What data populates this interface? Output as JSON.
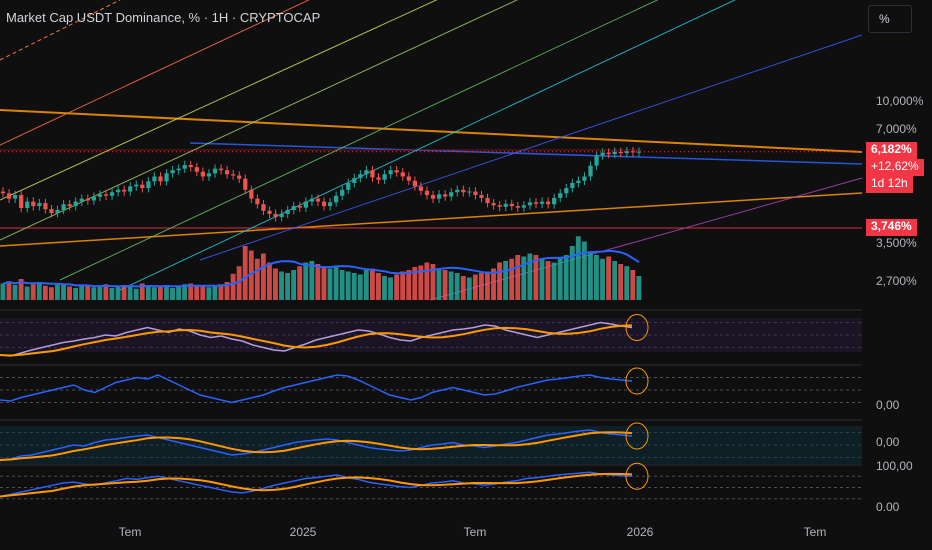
{
  "header": {
    "title": "Market Cap USDT Dominance, % · 1H · CRYPTOCAP",
    "unit_button": "%"
  },
  "badges": {
    "price": "6,182%",
    "change": "+12,62%",
    "countdown": "1d 12h",
    "level": "3,746%"
  },
  "colors": {
    "background": "#0f0f0f",
    "up": "#26a69a",
    "down": "#ef5350",
    "accent_orange": "#ff9800",
    "accent_blue": "#2962ff",
    "badge_red": "#f23645"
  },
  "chart_data": {
    "type": "candlestick",
    "title": "Market Cap USDT Dominance, % · 1H · CRYPTOCAP",
    "price_axis": {
      "scale": "log",
      "labels": [
        "10,000%",
        "7,000%",
        "3,500%",
        "2,700%"
      ]
    },
    "time_axis": {
      "labels": [
        "Tem",
        "2025",
        "Tem",
        "2026",
        "Tem"
      ]
    },
    "last_price": 6.182,
    "change_percent": 12.62,
    "horizontal_level": 3.746,
    "candle_closes": [
      4.85,
      4.7,
      4.8,
      4.45,
      4.62,
      4.5,
      4.58,
      4.42,
      4.32,
      4.4,
      4.55,
      4.5,
      4.62,
      4.7,
      4.65,
      4.75,
      4.82,
      4.78,
      4.88,
      4.95,
      4.9,
      5.05,
      5.1,
      5.0,
      5.2,
      5.35,
      5.2,
      5.45,
      5.55,
      5.6,
      5.72,
      5.65,
      5.5,
      5.35,
      5.45,
      5.6,
      5.55,
      5.42,
      5.38,
      5.28,
      4.95,
      4.7,
      4.55,
      4.38,
      4.3,
      4.22,
      4.3,
      4.4,
      4.5,
      4.46,
      4.62,
      4.7,
      4.62,
      4.5,
      4.6,
      4.78,
      4.95,
      5.15,
      5.3,
      5.42,
      5.55,
      5.32,
      5.25,
      5.42,
      5.55,
      5.48,
      5.35,
      5.22,
      5.05,
      4.92,
      4.8,
      4.7,
      4.82,
      4.76,
      4.88,
      4.95,
      4.88,
      4.9,
      4.8,
      4.72,
      4.58,
      4.52,
      4.48,
      4.56,
      4.5,
      4.46,
      4.52,
      4.6,
      4.56,
      4.62,
      4.55,
      4.72,
      4.85,
      5.0,
      5.15,
      5.22,
      5.35,
      5.7,
      6.05,
      6.15,
      6.1,
      6.18,
      6.13,
      6.2,
      6.16,
      6.182
    ],
    "volume": [
      0.22,
      0.25,
      0.2,
      0.28,
      0.18,
      0.21,
      0.24,
      0.19,
      0.17,
      0.22,
      0.2,
      0.18,
      0.16,
      0.2,
      0.19,
      0.17,
      0.18,
      0.21,
      0.16,
      0.19,
      0.2,
      0.18,
      0.15,
      0.22,
      0.19,
      0.17,
      0.18,
      0.2,
      0.16,
      0.19,
      0.21,
      0.22,
      0.2,
      0.18,
      0.17,
      0.19,
      0.21,
      0.24,
      0.35,
      0.45,
      0.72,
      0.66,
      0.55,
      0.62,
      0.5,
      0.42,
      0.38,
      0.36,
      0.4,
      0.45,
      0.5,
      0.52,
      0.48,
      0.44,
      0.42,
      0.46,
      0.4,
      0.38,
      0.36,
      0.34,
      0.4,
      0.42,
      0.36,
      0.32,
      0.3,
      0.34,
      0.38,
      0.4,
      0.44,
      0.46,
      0.5,
      0.48,
      0.42,
      0.4,
      0.38,
      0.36,
      0.32,
      0.3,
      0.34,
      0.36,
      0.38,
      0.42,
      0.5,
      0.52,
      0.55,
      0.6,
      0.58,
      0.62,
      0.6,
      0.55,
      0.52,
      0.5,
      0.56,
      0.6,
      0.72,
      0.85,
      0.78,
      0.65,
      0.6,
      0.55,
      0.58,
      0.52,
      0.48,
      0.45,
      0.4,
      0.32
    ],
    "panes": [
      {
        "name": "oscillator-1",
        "values": [
          0.1,
          0.08,
          0.14,
          0.2,
          0.25,
          0.3,
          0.35,
          0.38,
          0.42,
          0.45,
          0.5,
          0.48,
          0.55,
          0.6,
          0.65,
          0.6,
          0.55,
          0.62,
          0.58,
          0.5,
          0.45,
          0.48,
          0.42,
          0.38,
          0.3,
          0.25,
          0.2,
          0.18,
          0.25,
          0.32,
          0.4,
          0.45,
          0.5,
          0.55,
          0.6,
          0.58,
          0.52,
          0.45,
          0.4,
          0.38,
          0.45,
          0.5,
          0.55,
          0.6,
          0.62,
          0.65,
          0.7,
          0.68,
          0.6,
          0.55,
          0.5,
          0.45,
          0.5,
          0.55,
          0.6,
          0.65,
          0.7,
          0.75,
          0.72,
          0.68,
          0.65
        ]
      },
      {
        "name": "oscillator-2",
        "values": [
          0.3,
          0.28,
          0.35,
          0.4,
          0.45,
          0.5,
          0.55,
          0.6,
          0.5,
          0.45,
          0.55,
          0.65,
          0.7,
          0.75,
          0.72,
          0.8,
          0.7,
          0.6,
          0.5,
          0.4,
          0.35,
          0.3,
          0.25,
          0.3,
          0.35,
          0.4,
          0.48,
          0.55,
          0.6,
          0.65,
          0.7,
          0.75,
          0.8,
          0.78,
          0.7,
          0.6,
          0.5,
          0.4,
          0.35,
          0.3,
          0.35,
          0.45,
          0.5,
          0.55,
          0.5,
          0.45,
          0.4,
          0.42,
          0.48,
          0.55,
          0.6,
          0.65,
          0.7,
          0.72,
          0.75,
          0.78,
          0.8,
          0.75,
          0.72,
          0.7,
          0.68
        ]
      },
      {
        "name": "oscillator-3",
        "values": [
          0.2,
          0.22,
          0.28,
          0.3,
          0.35,
          0.4,
          0.45,
          0.5,
          0.48,
          0.55,
          0.6,
          0.62,
          0.65,
          0.68,
          0.7,
          0.65,
          0.6,
          0.55,
          0.5,
          0.45,
          0.4,
          0.35,
          0.3,
          0.32,
          0.35,
          0.4,
          0.45,
          0.5,
          0.55,
          0.58,
          0.6,
          0.62,
          0.6,
          0.55,
          0.5,
          0.45,
          0.42,
          0.4,
          0.38,
          0.4,
          0.45,
          0.5,
          0.52,
          0.55,
          0.5,
          0.48,
          0.45,
          0.48,
          0.52,
          0.55,
          0.6,
          0.65,
          0.7,
          0.72,
          0.75,
          0.78,
          0.8,
          0.75,
          0.72,
          0.7,
          0.68
        ]
      },
      {
        "name": "oscillator-4",
        "values": [
          0.3,
          0.35,
          0.4,
          0.45,
          0.5,
          0.55,
          0.6,
          0.62,
          0.58,
          0.55,
          0.6,
          0.65,
          0.7,
          0.68,
          0.72,
          0.75,
          0.7,
          0.65,
          0.6,
          0.55,
          0.5,
          0.45,
          0.4,
          0.38,
          0.42,
          0.48,
          0.55,
          0.6,
          0.65,
          0.7,
          0.72,
          0.75,
          0.78,
          0.72,
          0.68,
          0.62,
          0.58,
          0.55,
          0.52,
          0.5,
          0.55,
          0.6,
          0.62,
          0.65,
          0.6,
          0.58,
          0.55,
          0.58,
          0.62,
          0.65,
          0.7,
          0.72,
          0.75,
          0.78,
          0.8,
          0.82,
          0.84,
          0.8,
          0.78,
          0.76,
          0.75
        ]
      }
    ],
    "pane_labels": {
      "oscillator-2": "0,00",
      "oscillator-3": "0,00",
      "oscillator-4": [
        "100,00",
        "0.00"
      ]
    }
  }
}
